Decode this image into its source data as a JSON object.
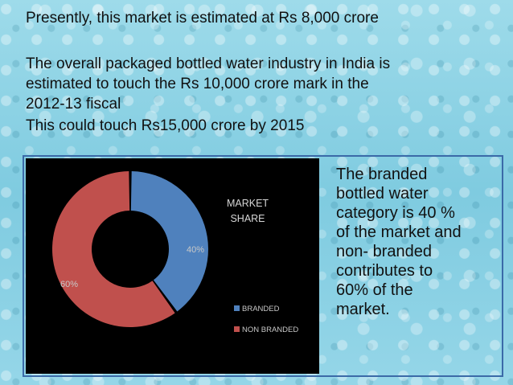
{
  "header": {
    "line1": "Presently, this market is estimated at Rs 8,000 crore",
    "line2": "The overall packaged bottled water industry in India is",
    "line3": "estimated to touch the Rs 10,000 crore mark in the",
    "line4": "2012-13 fiscal",
    "line5": "This could touch Rs15,000 crore by 2015"
  },
  "side_text": {
    "lines": [
      "The branded",
      "bottled water",
      "category is 40 %",
      "of the market and",
      "non- branded",
      "contributes to",
      "60% of the",
      "market."
    ]
  },
  "chart_data": {
    "type": "pie",
    "variant": "doughnut",
    "title": "MARKET SHARE",
    "title_lines": [
      "MARKET",
      "SHARE"
    ],
    "categories": [
      "BRANDED",
      "NON BRANDED"
    ],
    "values": [
      40,
      60
    ],
    "data_labels": [
      "40%",
      "60%"
    ],
    "colors": [
      "#4f81bd",
      "#c0504d"
    ],
    "legend_position": "bottom-right"
  }
}
